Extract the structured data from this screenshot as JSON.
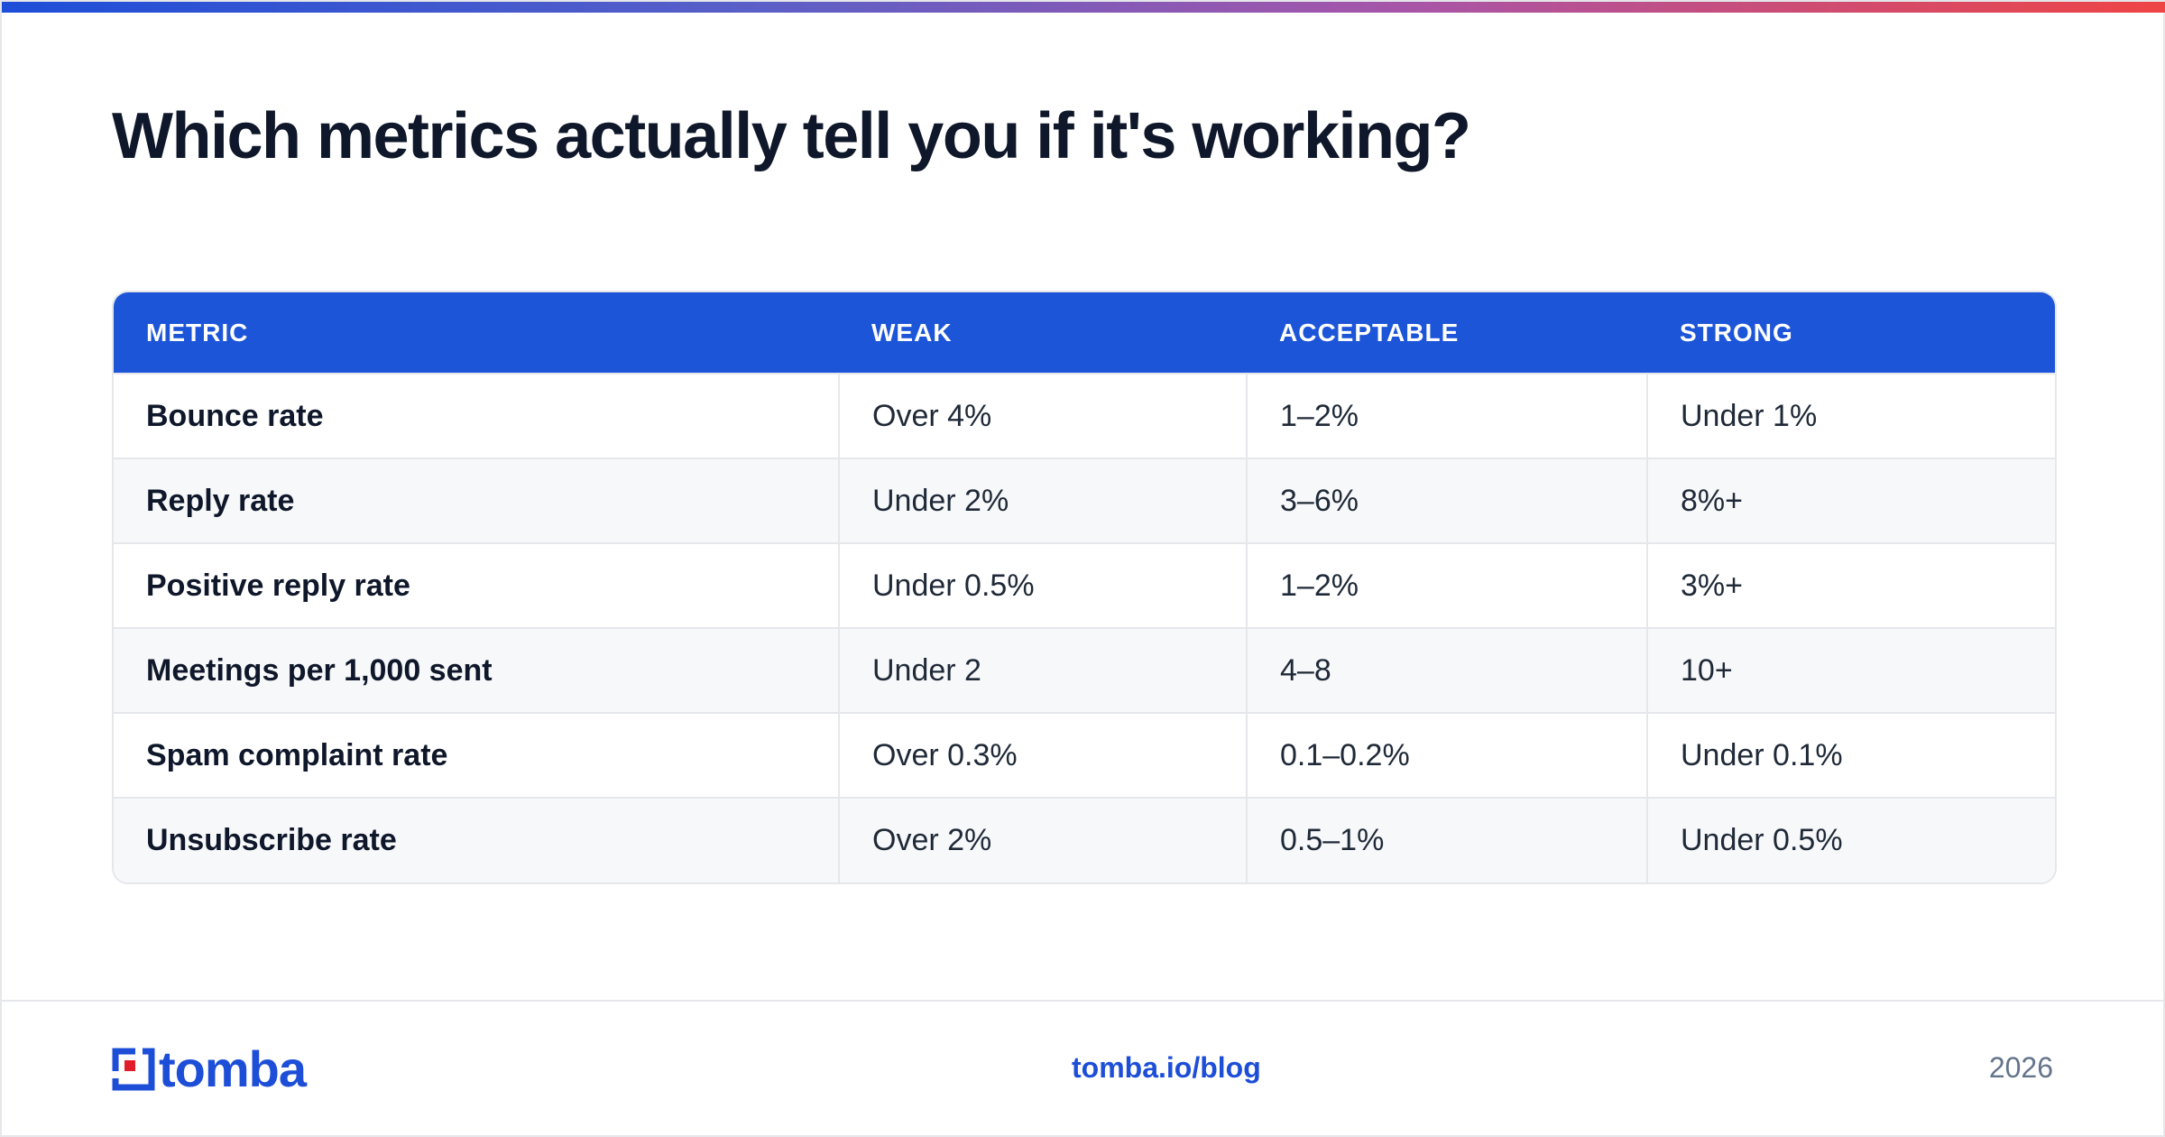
{
  "header": {
    "title": "Which metrics actually tell you if it's working?"
  },
  "table": {
    "columns": [
      "METRIC",
      "WEAK",
      "ACCEPTABLE",
      "STRONG"
    ],
    "rows": [
      [
        "Bounce rate",
        "Over 4%",
        "1–2%",
        "Under 1%"
      ],
      [
        "Reply rate",
        "Under 2%",
        "3–6%",
        "8%+"
      ],
      [
        "Positive reply rate",
        "Under 0.5%",
        "1–2%",
        "3%+"
      ],
      [
        "Meetings per 1,000 sent",
        "Under 2",
        "4–8",
        "10+"
      ],
      [
        "Spam complaint rate",
        "Over 0.3%",
        "0.1–0.2%",
        "Under 0.1%"
      ],
      [
        "Unsubscribe rate",
        "Over 2%",
        "0.5–1%",
        "Under 0.5%"
      ]
    ]
  },
  "footer": {
    "logo_text": "tomba",
    "logo_icon": "tomba-logo-icon",
    "link": "tomba.io/blog",
    "year": "2026"
  },
  "colors": {
    "accent": "#1d55d9",
    "gradient": [
      "#1d4ed8",
      "#a855a8",
      "#ef4444"
    ],
    "logo_red": "#e11d2a"
  }
}
